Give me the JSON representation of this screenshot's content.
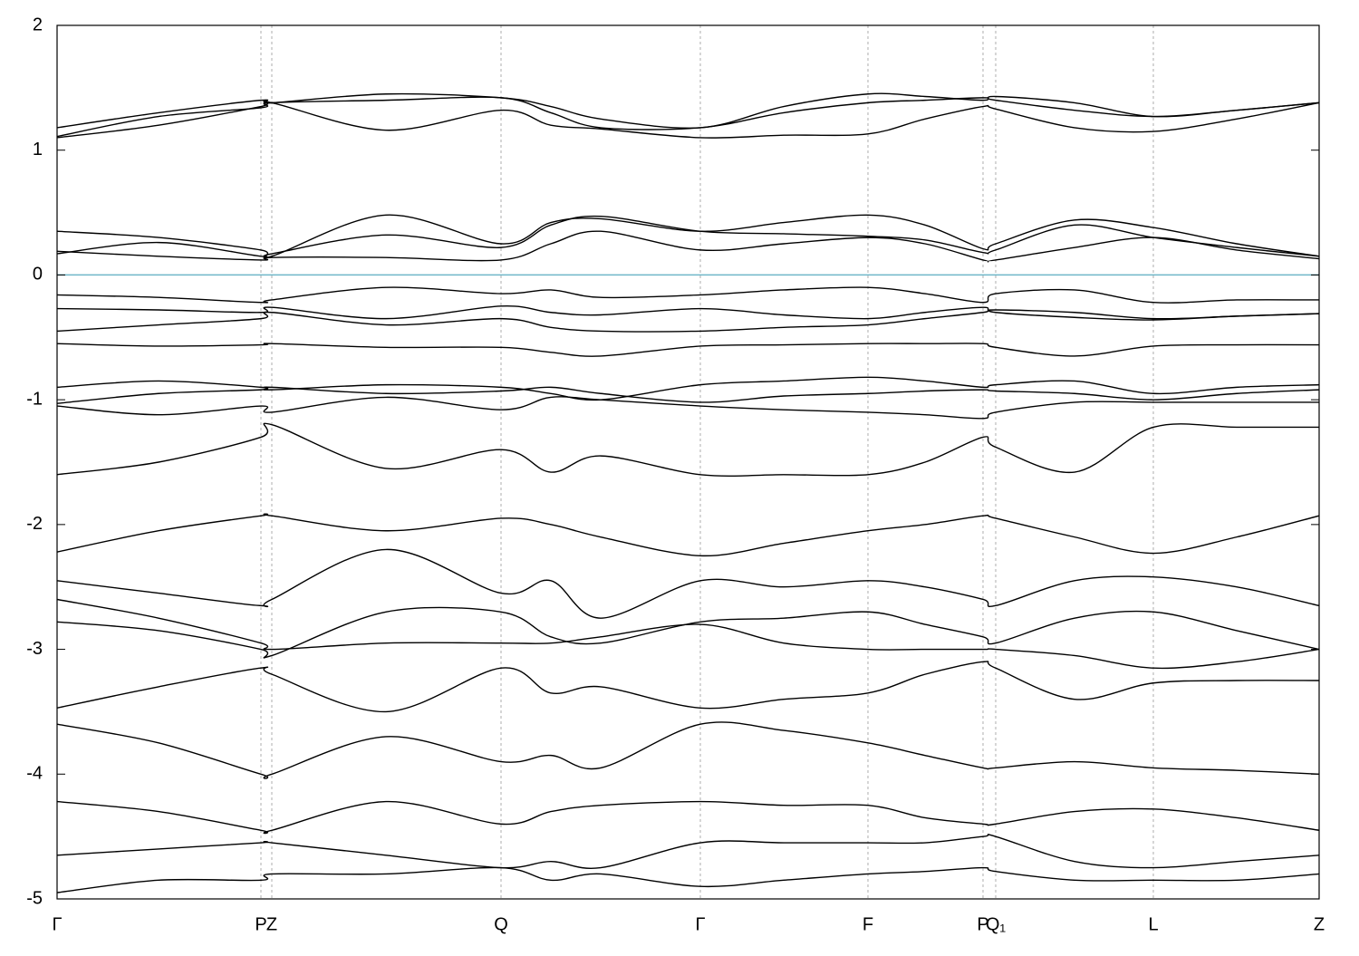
{
  "chart_data": {
    "type": "line",
    "x": [
      0,
      112,
      225,
      237,
      363,
      490,
      545,
      600,
      710,
      802,
      895,
      958,
      1022,
      1036,
      1123,
      1210,
      1302,
      1393
    ],
    "xlim": [
      0,
      1393
    ],
    "xticks": [
      {
        "value": 0,
        "label": "Γ"
      },
      {
        "value": 225,
        "label": "P"
      },
      {
        "value": 237,
        "label": "Z"
      },
      {
        "value": 490,
        "label": "Q"
      },
      {
        "value": 710,
        "label": "Γ"
      },
      {
        "value": 895,
        "label": "F"
      },
      {
        "value": 1022,
        "label": "P"
      },
      {
        "value": 1036,
        "label": "Q₁"
      },
      {
        "value": 1210,
        "label": "L"
      },
      {
        "value": 1393,
        "label": "Z"
      }
    ],
    "ylim": [
      -5,
      2
    ],
    "yticks": [
      2,
      1,
      0,
      -1,
      -2,
      -3,
      -4,
      -5
    ],
    "grid": true,
    "line_color": "#000000",
    "hlines": [
      {
        "value": 0,
        "color": "#6fb7c9"
      }
    ],
    "series": [
      {
        "values": [
          1.1,
          1.2,
          1.35,
          1.38,
          1.16,
          1.32,
          1.2,
          1.17,
          1.1,
          1.12,
          1.13,
          1.25,
          1.35,
          1.33,
          1.18,
          1.15,
          1.25,
          1.38
        ]
      },
      {
        "values": [
          1.18,
          1.3,
          1.4,
          1.38,
          1.45,
          1.42,
          1.35,
          1.25,
          1.18,
          1.35,
          1.45,
          1.43,
          1.4,
          1.43,
          1.38,
          1.27,
          1.32,
          1.38
        ]
      },
      {
        "values": [
          1.11,
          1.27,
          1.34,
          1.38,
          1.4,
          1.42,
          1.3,
          1.18,
          1.18,
          1.3,
          1.38,
          1.4,
          1.42,
          1.4,
          1.32,
          1.27,
          1.32,
          1.38
        ]
      },
      {
        "values": [
          0.35,
          0.3,
          0.2,
          0.15,
          0.48,
          0.25,
          0.42,
          0.45,
          0.35,
          0.42,
          0.48,
          0.4,
          0.21,
          0.25,
          0.44,
          0.38,
          0.25,
          0.15
        ]
      },
      {
        "values": [
          0.17,
          0.26,
          0.15,
          0.17,
          0.32,
          0.22,
          0.4,
          0.47,
          0.35,
          0.33,
          0.31,
          0.28,
          0.18,
          0.2,
          0.4,
          0.3,
          0.22,
          0.15
        ]
      },
      {
        "values": [
          0.19,
          0.15,
          0.12,
          0.14,
          0.14,
          0.12,
          0.25,
          0.35,
          0.2,
          0.25,
          0.3,
          0.25,
          0.12,
          0.12,
          0.22,
          0.3,
          0.2,
          0.13
        ]
      },
      {
        "values": [
          -0.16,
          -0.18,
          -0.22,
          -0.2,
          -0.1,
          -0.15,
          -0.12,
          -0.18,
          -0.16,
          -0.12,
          -0.1,
          -0.15,
          -0.22,
          -0.15,
          -0.12,
          -0.22,
          -0.2,
          -0.2
        ]
      },
      {
        "values": [
          -0.27,
          -0.28,
          -0.3,
          -0.26,
          -0.35,
          -0.25,
          -0.3,
          -0.32,
          -0.27,
          -0.32,
          -0.35,
          -0.3,
          -0.26,
          -0.3,
          -0.34,
          -0.36,
          -0.33,
          -0.31
        ]
      },
      {
        "values": [
          -0.45,
          -0.4,
          -0.35,
          -0.3,
          -0.4,
          -0.35,
          -0.42,
          -0.45,
          -0.45,
          -0.42,
          -0.4,
          -0.35,
          -0.3,
          -0.28,
          -0.3,
          -0.35,
          -0.33,
          -0.31
        ]
      },
      {
        "values": [
          -0.55,
          -0.57,
          -0.56,
          -0.55,
          -0.58,
          -0.58,
          -0.62,
          -0.65,
          -0.57,
          -0.56,
          -0.55,
          -0.55,
          -0.55,
          -0.58,
          -0.65,
          -0.57,
          -0.56,
          -0.56
        ]
      },
      {
        "values": [
          -0.9,
          -0.85,
          -0.9,
          -0.92,
          -0.88,
          -0.9,
          -0.95,
          -1.0,
          -0.88,
          -0.85,
          -0.82,
          -0.85,
          -0.9,
          -0.88,
          -0.85,
          -0.95,
          -0.9,
          -0.88
        ]
      },
      {
        "values": [
          -1.03,
          -0.95,
          -0.92,
          -0.9,
          -0.95,
          -0.93,
          -0.9,
          -0.95,
          -1.02,
          -0.97,
          -0.95,
          -0.93,
          -0.92,
          -0.93,
          -0.95,
          -1.0,
          -0.95,
          -0.92
        ]
      },
      {
        "values": [
          -1.05,
          -1.12,
          -1.05,
          -1.1,
          -0.98,
          -1.08,
          -0.98,
          -1.0,
          -1.05,
          -1.08,
          -1.1,
          -1.12,
          -1.15,
          -1.1,
          -1.02,
          -1.02,
          -1.02,
          -1.02
        ]
      },
      {
        "values": [
          -1.6,
          -1.5,
          -1.3,
          -1.2,
          -1.55,
          -1.4,
          -1.58,
          -1.45,
          -1.6,
          -1.6,
          -1.6,
          -1.5,
          -1.3,
          -1.38,
          -1.58,
          -1.22,
          -1.22,
          -1.22
        ]
      },
      {
        "values": [
          -2.22,
          -2.05,
          -1.93,
          -1.93,
          -2.05,
          -1.95,
          -2.0,
          -2.1,
          -2.25,
          -2.15,
          -2.05,
          -2.0,
          -1.93,
          -1.95,
          -2.1,
          -2.23,
          -2.1,
          -1.93
        ]
      },
      {
        "values": [
          -2.45,
          -2.55,
          -2.65,
          -2.6,
          -2.2,
          -2.55,
          -2.45,
          -2.75,
          -2.45,
          -2.5,
          -2.45,
          -2.5,
          -2.6,
          -2.65,
          -2.45,
          -2.42,
          -2.5,
          -2.65
        ]
      },
      {
        "values": [
          -2.78,
          -2.85,
          -3.0,
          -3.05,
          -2.7,
          -2.7,
          -2.9,
          -2.95,
          -2.78,
          -2.75,
          -2.7,
          -2.8,
          -2.9,
          -2.95,
          -2.75,
          -2.7,
          -2.85,
          -3.0
        ]
      },
      {
        "values": [
          -2.6,
          -2.75,
          -2.95,
          -3.0,
          -2.95,
          -2.95,
          -2.95,
          -2.9,
          -2.8,
          -2.95,
          -3.0,
          -3.0,
          -3.0,
          -3.0,
          -3.05,
          -3.15,
          -3.1,
          -3.0
        ]
      },
      {
        "values": [
          -3.47,
          -3.3,
          -3.15,
          -3.2,
          -3.5,
          -3.15,
          -3.35,
          -3.3,
          -3.47,
          -3.4,
          -3.35,
          -3.2,
          -3.1,
          -3.15,
          -3.4,
          -3.27,
          -3.25,
          -3.25
        ]
      },
      {
        "values": [
          -3.6,
          -3.75,
          -4.0,
          -4.0,
          -3.7,
          -3.9,
          -3.85,
          -3.95,
          -3.6,
          -3.65,
          -3.75,
          -3.85,
          -3.95,
          -3.95,
          -3.9,
          -3.95,
          -3.97,
          -4.0
        ]
      },
      {
        "values": [
          -4.22,
          -4.3,
          -4.45,
          -4.45,
          -4.22,
          -4.4,
          -4.3,
          -4.25,
          -4.22,
          -4.25,
          -4.25,
          -4.35,
          -4.4,
          -4.4,
          -4.3,
          -4.28,
          -4.35,
          -4.45
        ]
      },
      {
        "values": [
          -4.65,
          -4.6,
          -4.55,
          -4.55,
          -4.65,
          -4.75,
          -4.7,
          -4.75,
          -4.55,
          -4.55,
          -4.55,
          -4.55,
          -4.5,
          -4.5,
          -4.7,
          -4.75,
          -4.7,
          -4.65
        ]
      },
      {
        "values": [
          -4.95,
          -4.85,
          -4.85,
          -4.8,
          -4.8,
          -4.75,
          -4.85,
          -4.8,
          -4.9,
          -4.85,
          -4.8,
          -4.78,
          -4.75,
          -4.78,
          -4.85,
          -4.85,
          -4.85,
          -4.8
        ]
      }
    ]
  }
}
